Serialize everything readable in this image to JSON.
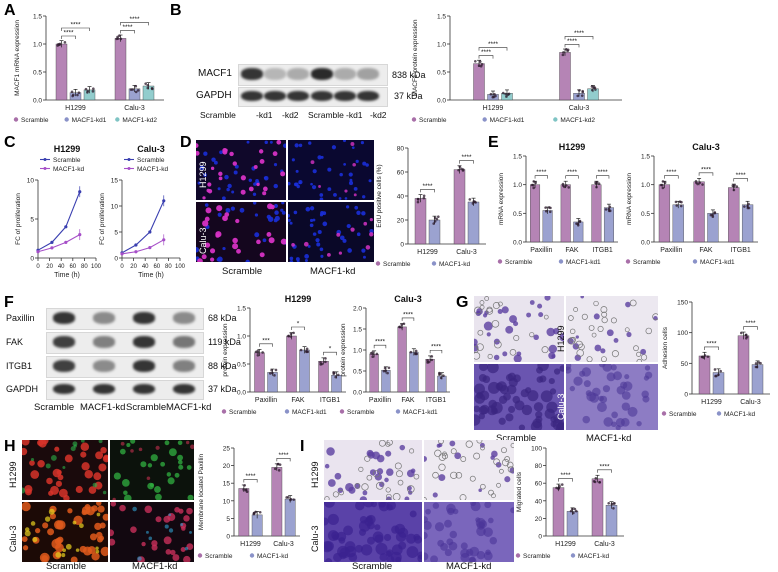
{
  "panels": {
    "A": "A",
    "B": "B",
    "C": "C",
    "D": "D",
    "E": "E",
    "F": "F",
    "G": "G",
    "H": "H",
    "I": "I"
  },
  "colors": {
    "scramble": "#a86fa8",
    "kd1": "#8a92c8",
    "kd2": "#7fc4c4",
    "dapi": "#1a2fd8",
    "edu": "#d632c4",
    "crystal": "#5b3fa0"
  },
  "blot_B": {
    "rows": [
      "MACF1",
      "GAPDH"
    ],
    "sizes": [
      "838 kDa",
      "37 kDa"
    ],
    "lanes": [
      "Scramble",
      "-kd1",
      "-kd2",
      "Scramble",
      "-kd1",
      "-kd2"
    ]
  },
  "blot_F": {
    "rows": [
      "Paxillin",
      "FAK",
      "ITGB1",
      "GAPDH"
    ],
    "sizes": [
      "68 kDa",
      "119 kDa",
      "88 kDa",
      "37 kDa"
    ],
    "lanes": [
      "Scramble",
      "MACF1-kd",
      "Scramble",
      "MACF1-kd"
    ]
  },
  "micro_D": {
    "rows": [
      "H1299",
      "Calu-3"
    ],
    "cols": [
      "Scramble",
      "MACF1-kd"
    ]
  },
  "micro_G": {
    "rows": [
      "H1299",
      "Calu-3"
    ],
    "cols": [
      "Scramble",
      "MACF1-kd"
    ]
  },
  "micro_H": {
    "rows": [
      "H1299",
      "Calu-3"
    ],
    "cols": [
      "Scramble",
      "MACF1-kd"
    ]
  },
  "micro_I": {
    "rows": [
      "H1299",
      "Calu-3"
    ],
    "cols": [
      "Scramble",
      "MACF1-kd"
    ]
  },
  "chart_data": [
    {
      "id": "A",
      "type": "bar",
      "ylabel": "MACF1 mRNA expression",
      "ylim": [
        0,
        1.5
      ],
      "yticks": [
        "0.0",
        "0.5",
        "1.0",
        "1.5"
      ],
      "categories": [
        "H1299",
        "Calu-3"
      ],
      "series": [
        {
          "name": "Scramble",
          "values": [
            1.0,
            1.1
          ]
        },
        {
          "name": "MACF1-kd1",
          "values": [
            0.13,
            0.2
          ]
        },
        {
          "name": "MACF1-kd2",
          "values": [
            0.18,
            0.25
          ]
        }
      ],
      "significance": [
        "****",
        "****",
        "****",
        "****"
      ],
      "legend": [
        "Scramble",
        "MACF1-kd1",
        "MACF1-kd2"
      ]
    },
    {
      "id": "B",
      "type": "bar",
      "ylabel": "MACF1 protein expression",
      "ylim": [
        0,
        1.5
      ],
      "yticks": [
        "0.0",
        "0.5",
        "1.0",
        "1.5"
      ],
      "categories": [
        "H1299",
        "Calu-3"
      ],
      "series": [
        {
          "name": "Scramble",
          "values": [
            0.65,
            0.85
          ]
        },
        {
          "name": "MACF1-kd1",
          "values": [
            0.1,
            0.12
          ]
        },
        {
          "name": "MACF1-kd2",
          "values": [
            0.12,
            0.2
          ]
        }
      ],
      "significance": [
        "****",
        "****",
        "****",
        "****"
      ],
      "legend": [
        "Scramble",
        "MACF1-kd1",
        "MACF1-kd2"
      ]
    },
    {
      "id": "C1",
      "type": "line",
      "title": "H1299",
      "ylabel": "FC of proliferation",
      "xlabel": "Time (h)",
      "xlim": [
        0,
        100
      ],
      "ylim": [
        0,
        10
      ],
      "xticks": [
        "0",
        "20",
        "40",
        "60",
        "80",
        "100"
      ],
      "yticks": [
        "0",
        "5",
        "10"
      ],
      "series": [
        {
          "name": "Scramble",
          "x": [
            0,
            24,
            48,
            72
          ],
          "y": [
            1,
            2,
            4,
            8.5
          ]
        },
        {
          "name": "MACF1-kd",
          "x": [
            0,
            24,
            48,
            72
          ],
          "y": [
            0.8,
            1.3,
            2.0,
            3.0
          ]
        }
      ]
    },
    {
      "id": "C2",
      "type": "line",
      "title": "Calu-3",
      "ylabel": "FC of proliferation",
      "xlabel": "Time (h)",
      "xlim": [
        0,
        100
      ],
      "ylim": [
        0,
        15
      ],
      "xticks": [
        "0",
        "20",
        "40",
        "60",
        "80",
        "100"
      ],
      "yticks": [
        "0",
        "5",
        "10",
        "15"
      ],
      "series": [
        {
          "name": "Scramble",
          "x": [
            0,
            24,
            48,
            72
          ],
          "y": [
            1,
            2.5,
            5,
            11
          ]
        },
        {
          "name": "MACF1-kd",
          "x": [
            0,
            24,
            48,
            72
          ],
          "y": [
            0.8,
            1.2,
            2.0,
            3.5
          ]
        }
      ]
    },
    {
      "id": "D",
      "type": "bar",
      "ylabel": "EdU positive cells (%)",
      "ylim": [
        0,
        80
      ],
      "yticks": [
        "0",
        "20",
        "40",
        "60",
        "80"
      ],
      "categories": [
        "H1299",
        "Calu-3"
      ],
      "series": [
        {
          "name": "Scramble",
          "values": [
            38,
            62
          ]
        },
        {
          "name": "MACF1-kd",
          "values": [
            20,
            35
          ]
        }
      ],
      "significance": [
        "****",
        "****"
      ],
      "legend": [
        "Scramble",
        "MACF1-kd"
      ]
    },
    {
      "id": "E1",
      "type": "bar",
      "title": "H1299",
      "ylabel": "mRNA expression",
      "ylim": [
        0,
        1.5
      ],
      "yticks": [
        "0.0",
        "0.5",
        "1.0",
        "1.5"
      ],
      "categories": [
        "Paxillin",
        "FAK",
        "ITGB1"
      ],
      "series": [
        {
          "name": "Scramble",
          "values": [
            1.0,
            1.0,
            1.0
          ]
        },
        {
          "name": "MACF1-kd1",
          "values": [
            0.55,
            0.35,
            0.6
          ]
        }
      ],
      "significance": [
        "****",
        "****",
        "****"
      ],
      "legend": [
        "Scramble",
        "MACF1-kd1"
      ]
    },
    {
      "id": "E2",
      "type": "bar",
      "title": "Calu-3",
      "ylabel": "mRNA expression",
      "ylim": [
        0,
        1.5
      ],
      "yticks": [
        "0.0",
        "0.5",
        "1.0",
        "1.5"
      ],
      "categories": [
        "Paxillin",
        "FAK",
        "ITGB1"
      ],
      "series": [
        {
          "name": "Scramble",
          "values": [
            1.0,
            1.05,
            0.95
          ]
        },
        {
          "name": "MACF1-kd1",
          "values": [
            0.65,
            0.5,
            0.65
          ]
        }
      ],
      "significance": [
        "****",
        "****",
        "****"
      ],
      "legend": [
        "Scramble",
        "MACF1-kd1"
      ]
    },
    {
      "id": "F1",
      "type": "bar",
      "title": "H1299",
      "ylabel": "protein expression",
      "ylim": [
        0,
        1.5
      ],
      "yticks": [
        "0.0",
        "0.5",
        "1.0",
        "1.5"
      ],
      "categories": [
        "Paxillin",
        "FAK",
        "ITGB1"
      ],
      "series": [
        {
          "name": "Scramble",
          "values": [
            0.7,
            1.0,
            0.55
          ]
        },
        {
          "name": "MACF1-kd1",
          "values": [
            0.35,
            0.75,
            0.3
          ]
        }
      ],
      "significance": [
        "***",
        "*",
        "*"
      ],
      "legend": [
        "Scramble",
        "MACF1-kd1"
      ]
    },
    {
      "id": "F2",
      "type": "bar",
      "title": "Calu-3",
      "ylabel": "protein expression",
      "ylim": [
        0,
        2.0
      ],
      "yticks": [
        "0.0",
        "0.5",
        "1.0",
        "1.5",
        "2.0"
      ],
      "categories": [
        "Paxillin",
        "FAK",
        "ITGB1"
      ],
      "series": [
        {
          "name": "Scramble",
          "values": [
            0.9,
            1.55,
            0.78
          ]
        },
        {
          "name": "MACF1-kd1",
          "values": [
            0.52,
            0.95,
            0.38
          ]
        }
      ],
      "significance": [
        "****",
        "****",
        "****"
      ],
      "legend": [
        "Scramble",
        "MACF1-kd1"
      ]
    },
    {
      "id": "G",
      "type": "bar",
      "ylabel": "Adhesion cells",
      "ylim": [
        0,
        150
      ],
      "yticks": [
        "0",
        "50",
        "100",
        "150"
      ],
      "categories": [
        "H1299",
        "Calu-3"
      ],
      "series": [
        {
          "name": "Scramble",
          "values": [
            62,
            95
          ]
        },
        {
          "name": "MACF1-kd",
          "values": [
            35,
            48
          ]
        }
      ],
      "significance": [
        "****",
        "****"
      ],
      "legend": [
        "Scramble",
        "MACF1-kd"
      ]
    },
    {
      "id": "H",
      "type": "bar",
      "ylabel": "Membrane located Paxillin",
      "ylim": [
        0,
        25
      ],
      "yticks": [
        "0",
        "5",
        "10",
        "15",
        "20",
        "25"
      ],
      "categories": [
        "H1299",
        "Calu-3"
      ],
      "series": [
        {
          "name": "Scramble",
          "values": [
            13.5,
            19.5
          ]
        },
        {
          "name": "MACF1-kd",
          "values": [
            6,
            10.5
          ]
        }
      ],
      "significance": [
        "****",
        "****"
      ],
      "legend": [
        "Scramble",
        "MACF1-kd"
      ]
    },
    {
      "id": "I",
      "type": "bar",
      "ylabel": "Migrated cells",
      "ylim": [
        0,
        100
      ],
      "yticks": [
        "0",
        "20",
        "40",
        "60",
        "80",
        "100"
      ],
      "categories": [
        "H1299",
        "Calu-3"
      ],
      "series": [
        {
          "name": "Scramble",
          "values": [
            55,
            65
          ]
        },
        {
          "name": "MACF1-kd",
          "values": [
            28,
            35
          ]
        }
      ],
      "significance": [
        "****",
        "****"
      ],
      "legend": [
        "Scramble",
        "MACF1-kd"
      ]
    }
  ]
}
